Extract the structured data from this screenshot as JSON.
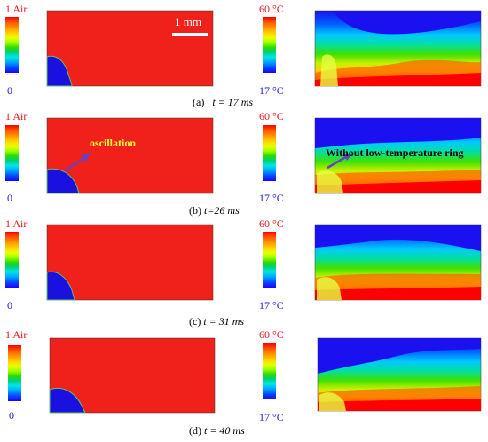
{
  "air_scale": {
    "top": "1 Air",
    "bottom": "0"
  },
  "temp_scale": {
    "top": "60 °C",
    "bottom": "17 °C"
  },
  "scale_bar": "1 mm",
  "panels": [
    {
      "letter": "(a)",
      "t_eq": "t = 17 ms"
    },
    {
      "letter": "(b)",
      "t_eq": "t=26 ms"
    },
    {
      "letter": "(c)",
      "t_eq": "t = 31 ms"
    },
    {
      "letter": "(d)",
      "t_eq": "t = 40 ms"
    }
  ],
  "annotations": {
    "oscillation": "oscillation",
    "ring": "Without low-temperature ring"
  },
  "colors": {
    "air": "#f0201a",
    "liquid": "#1a10e0",
    "hot": "#ff0000",
    "cold": "#1a10f0",
    "arrow": "#6a3fc0",
    "oscillation_text": "#ffff33"
  }
}
